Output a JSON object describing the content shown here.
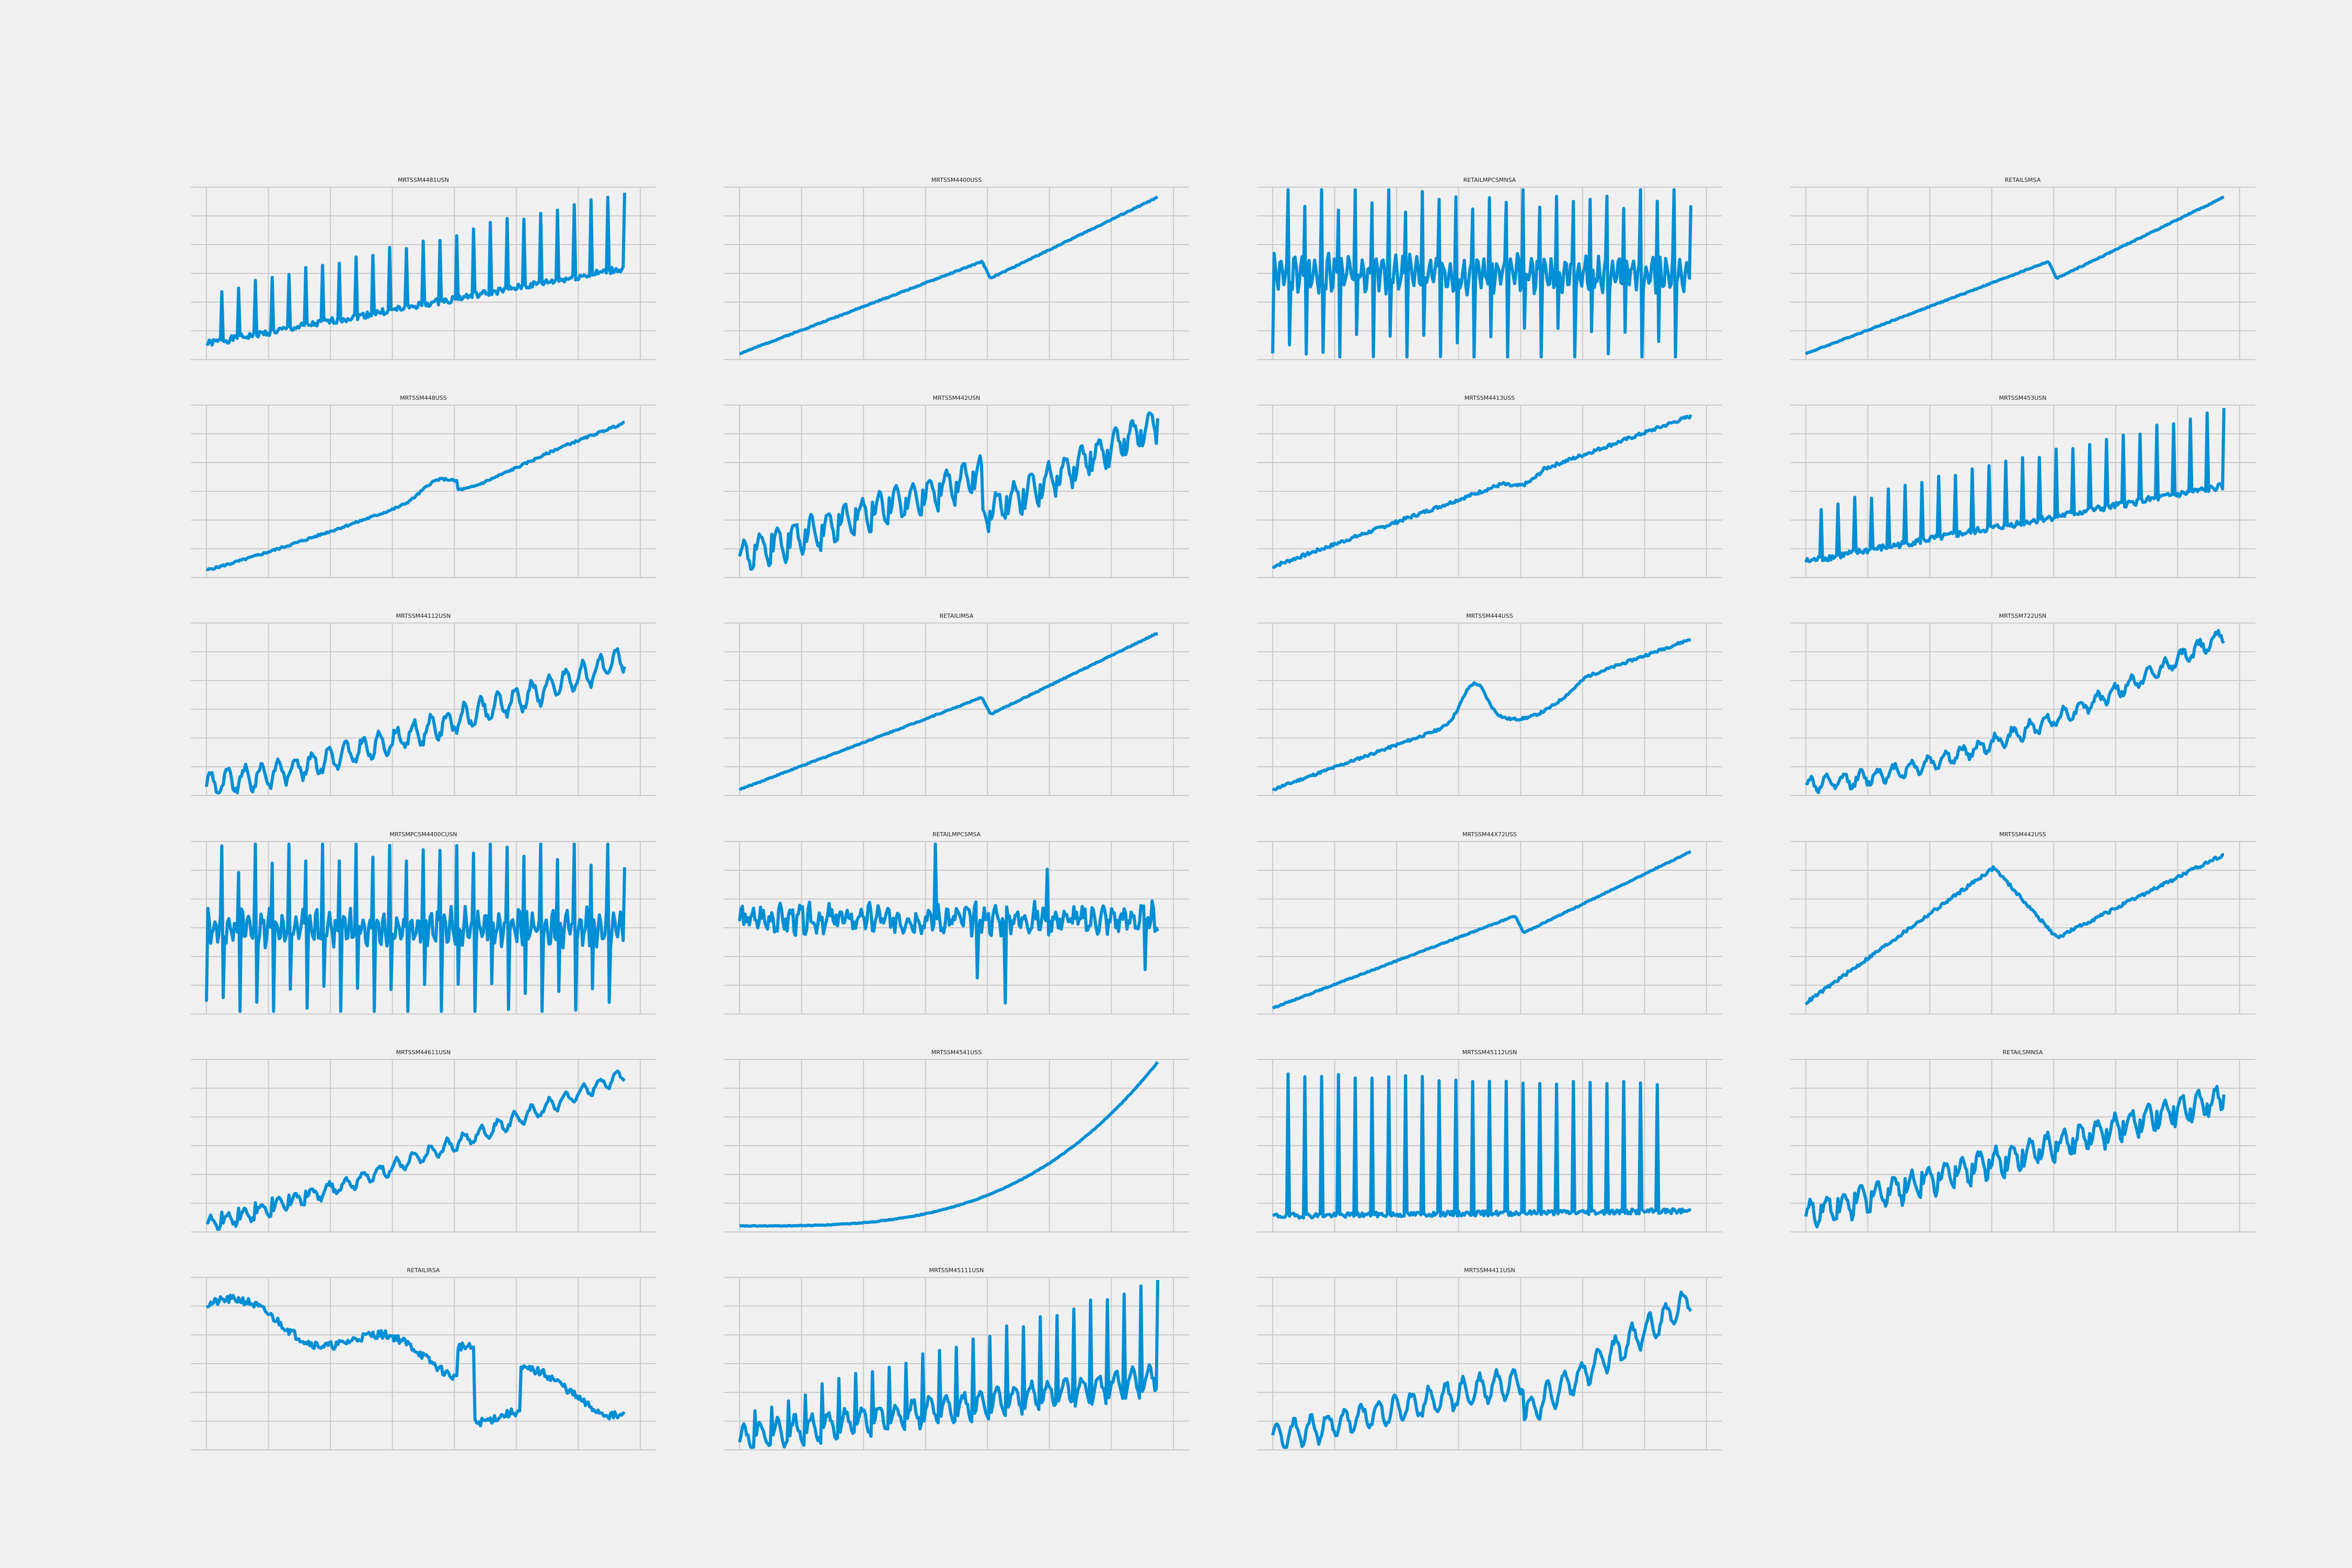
{
  "figure": {
    "background": "#f0f0f0",
    "line_color": "#008fd5",
    "grid_color": "#cbcbcb",
    "grid": true,
    "layout": "6 rows x 4 columns"
  },
  "chart_data": [
    {
      "type": "line",
      "title": "MRTSSM4481USN",
      "grid": true,
      "pattern": "seasonal_spikes",
      "trend": "rising",
      "seed": 1
    },
    {
      "type": "line",
      "title": "MRTSSM4400USS",
      "grid": true,
      "pattern": "smooth_trend_dip",
      "trend": "rising",
      "seed": 2
    },
    {
      "type": "line",
      "title": "RETAILMPCSMNSA",
      "grid": true,
      "pattern": "volatile_spikes",
      "trend": "flat",
      "seed": 3
    },
    {
      "type": "line",
      "title": "RETAILSMSA",
      "grid": true,
      "pattern": "smooth_trend_dip",
      "trend": "rising",
      "seed": 4
    },
    {
      "type": "line",
      "title": "MRTSSM448USS",
      "grid": true,
      "pattern": "trend_bump",
      "trend": "rising",
      "seed": 5
    },
    {
      "type": "line",
      "title": "MRTSSM442USN",
      "grid": true,
      "pattern": "seasonal_trend_drop",
      "trend": "rising",
      "seed": 6
    },
    {
      "type": "line",
      "title": "MRTSSM4413USS",
      "grid": true,
      "pattern": "trend_small_dip",
      "trend": "rising",
      "seed": 7
    },
    {
      "type": "line",
      "title": "MRTSSM453USN",
      "grid": true,
      "pattern": "seasonal_spikes",
      "trend": "rising",
      "seed": 8
    },
    {
      "type": "line",
      "title": "MRTSSM44112USN",
      "grid": true,
      "pattern": "noisy_trend",
      "trend": "rising",
      "seed": 9
    },
    {
      "type": "line",
      "title": "RETAILIMSA",
      "grid": true,
      "pattern": "smooth_trend_dip",
      "trend": "rising",
      "seed": 10
    },
    {
      "type": "line",
      "title": "MRTSSM444USS",
      "grid": true,
      "pattern": "trend_peak_drop",
      "trend": "rising",
      "seed": 11
    },
    {
      "type": "line",
      "title": "MRTSSM722USN",
      "grid": true,
      "pattern": "noisy_accelerating",
      "trend": "rising",
      "seed": 12
    },
    {
      "type": "line",
      "title": "MRTSMPCSM4400CUSN",
      "grid": true,
      "pattern": "volatile_spikes",
      "trend": "flat",
      "seed": 13
    },
    {
      "type": "line",
      "title": "RETAILMPCSMSA",
      "grid": true,
      "pattern": "noise_outliers",
      "trend": "flat",
      "seed": 14
    },
    {
      "type": "line",
      "title": "MRTSSM44X72USS",
      "grid": true,
      "pattern": "smooth_trend_dip",
      "trend": "rising",
      "seed": 15
    },
    {
      "type": "line",
      "title": "MRTSSM442USS",
      "grid": true,
      "pattern": "peak_crash_recover",
      "trend": "rising",
      "seed": 16
    },
    {
      "type": "line",
      "title": "MRTSSM44611USN",
      "grid": true,
      "pattern": "seasonal_rising",
      "trend": "rising",
      "seed": 17
    },
    {
      "type": "line",
      "title": "MRTSSM4541USS",
      "grid": true,
      "pattern": "exponential",
      "trend": "rising",
      "seed": 18
    },
    {
      "type": "line",
      "title": "MRTSSM45112USN",
      "grid": true,
      "pattern": "tall_spikes",
      "trend": "flat",
      "seed": 19
    },
    {
      "type": "line",
      "title": "RETAILSMNSA",
      "grid": true,
      "pattern": "noisy_seasonal_trend",
      "trend": "rising",
      "seed": 20
    },
    {
      "type": "line",
      "title": "RETAILIRSA",
      "grid": true,
      "pattern": "declining",
      "trend": "falling",
      "seed": 21
    },
    {
      "type": "line",
      "title": "MRTSSM45111USN",
      "grid": true,
      "pattern": "seasonal_spikes_growing",
      "trend": "rising",
      "seed": 22
    },
    {
      "type": "line",
      "title": "MRTSSM4411USN",
      "grid": true,
      "pattern": "noisy_trend_drop",
      "trend": "rising",
      "seed": 23
    }
  ]
}
